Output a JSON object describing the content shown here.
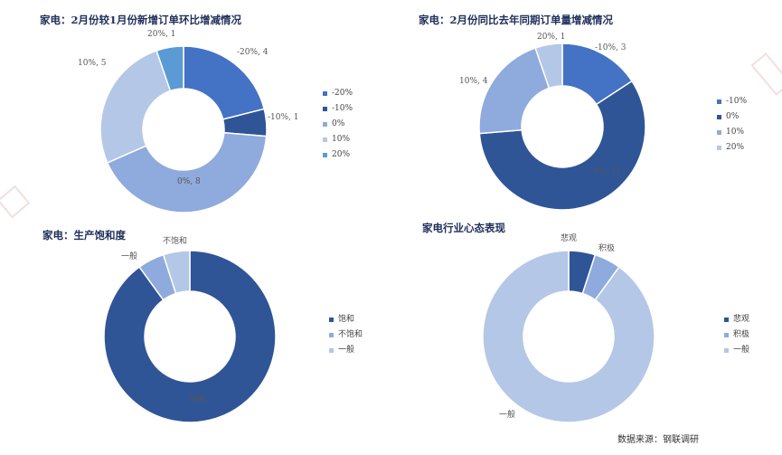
{
  "chart_data": [
    {
      "type": "pie",
      "title": "家电：2月份较1月份新增订单环比增减情况",
      "categories": [
        "-20%",
        "-10%",
        "0%",
        "10%",
        "20%"
      ],
      "values": [
        4,
        1,
        8,
        5,
        1
      ],
      "slice_labels": [
        "-20%, 4",
        "-10%, 1",
        "0%, 8",
        "10%, 5",
        "20%, 1"
      ],
      "colors": [
        "#4472c4",
        "#2f5597",
        "#8faadc",
        "#b4c7e7",
        "#5b9bd5"
      ],
      "legend": "right"
    },
    {
      "type": "pie",
      "title": "家电：2月份同比去年同期订单量增减情况",
      "categories": [
        "-10%",
        "0%",
        "10%",
        "20%"
      ],
      "values": [
        3,
        11,
        4,
        1
      ],
      "slice_labels": [
        "-10%, 3",
        "0%, 11",
        "10%, 4",
        "20%, 1"
      ],
      "colors": [
        "#4472c4",
        "#2f5597",
        "#8faadc",
        "#b4c7e7"
      ],
      "legend": "right"
    },
    {
      "type": "pie",
      "title": "家电：生产饱和度",
      "categories": [
        "饱和",
        "不饱和",
        "一般"
      ],
      "values": [
        90,
        5,
        5
      ],
      "slice_labels": [
        "饱和",
        "不饱和",
        "一般"
      ],
      "colors": [
        "#2f5597",
        "#8faadc",
        "#b4c7e7"
      ],
      "legend": "right"
    },
    {
      "type": "pie",
      "title": "家电行业心态表现",
      "categories": [
        "悲观",
        "积极",
        "一般"
      ],
      "values": [
        5,
        5,
        90
      ],
      "slice_labels": [
        "悲观",
        "积极",
        "一般"
      ],
      "colors": [
        "#2f5597",
        "#8faadc",
        "#b4c7e7"
      ],
      "legend": "right"
    }
  ],
  "footer": {
    "source": "数据来源：钢联调研"
  }
}
